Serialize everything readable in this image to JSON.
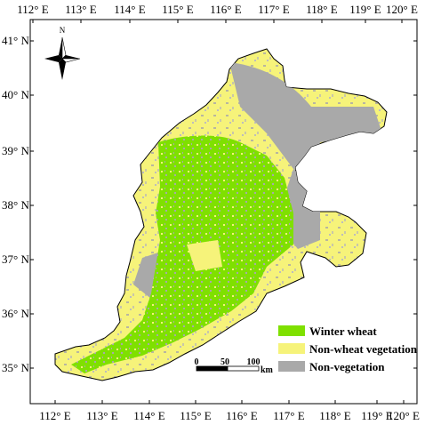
{
  "top_axis": [
    "112° E",
    "113° E",
    "114° E",
    "115° E",
    "116° E",
    "117° E",
    "118° E",
    "119° E",
    "120° E"
  ],
  "bottom_axis": [
    "112° E",
    "113° E",
    "114° E",
    "115° E",
    "116° E",
    "117° E",
    "118° E",
    "119° E",
    "120° E"
  ],
  "left_axis": [
    "41° N",
    "40° N",
    "39° N",
    "38° N",
    "37° N",
    "36° N",
    "35° N"
  ],
  "north_arrow": {
    "label": "N",
    "icon": "north-arrow-icon"
  },
  "legend": {
    "items": [
      {
        "label": "Winter wheat",
        "color": "#7fe000"
      },
      {
        "label": "Non-wheat vegetation",
        "color": "#f6f37a"
      },
      {
        "label": "Non-vegetation",
        "color": "#a9a9a9"
      }
    ]
  },
  "scale_bar": {
    "labels": [
      "0",
      "50",
      "100"
    ],
    "unit": "km"
  },
  "colors": {
    "frame": "#000000",
    "outline": "#000000",
    "background": "#ffffff"
  }
}
